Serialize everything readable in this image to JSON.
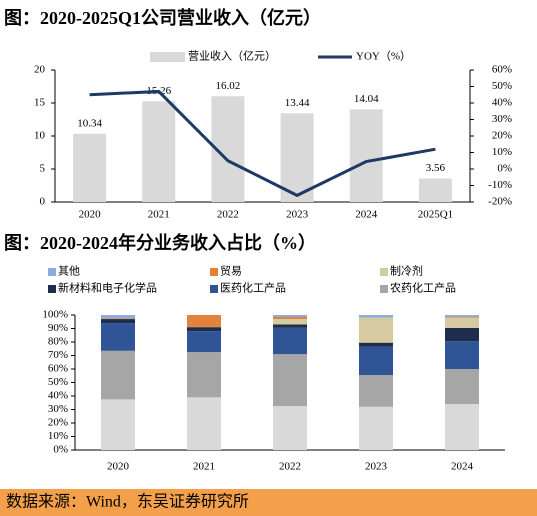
{
  "chart_data": [
    {
      "type": "combo",
      "title": "图：2020-2025Q1公司营业收入（亿元）",
      "categories": [
        "2020",
        "2021",
        "2022",
        "2023",
        "2024",
        "2025Q1"
      ],
      "series": [
        {
          "name": "营业收入（亿元）",
          "color": "#d9d9d9",
          "values": [
            10.34,
            15.26,
            16.02,
            13.44,
            14.04,
            3.56
          ]
        },
        {
          "name": "YOY（%）",
          "color": "#1f3864",
          "axis": "y2",
          "values": [
            45,
            47,
            5,
            -16,
            4.5,
            12
          ]
        }
      ],
      "ylim": [
        0,
        20
      ],
      "yticks": [
        0,
        5,
        10,
        15,
        20
      ],
      "y2lim": [
        -20,
        60
      ],
      "y2ticks": [
        {
          "value": -20,
          "label": "-20%"
        },
        {
          "value": -10,
          "label": "-10%"
        },
        {
          "value": 0,
          "label": "0%"
        },
        {
          "value": 10,
          "label": "10%"
        },
        {
          "value": 20,
          "label": "20%"
        },
        {
          "value": 30,
          "label": "30%"
        },
        {
          "value": 40,
          "label": "40%"
        },
        {
          "value": 50,
          "label": "50%"
        },
        {
          "value": 60,
          "label": "60%"
        }
      ]
    },
    {
      "type": "stacked",
      "title": "图：2020-2024年分业务收入占比（%）",
      "categories": [
        "2020",
        "2021",
        "2022",
        "2023",
        "2024"
      ],
      "series": [
        {
          "color": "#d9d9d9",
          "values": [
            37.5,
            39,
            32.5,
            32,
            34
          ]
        },
        {
          "name": "农药化工产品",
          "color": "#a6a6a6",
          "values": [
            36,
            33.5,
            38.5,
            23.5,
            26
          ]
        },
        {
          "name": "医药化工产品",
          "color": "#2f5597",
          "values": [
            20.5,
            15.5,
            19.5,
            21,
            20.5
          ]
        },
        {
          "name": "新材料和电子化学品",
          "color": "#1f2d4d",
          "values": [
            3,
            3,
            2.5,
            3,
            10
          ]
        },
        {
          "name": "制冷剂",
          "color": "#d6cba0",
          "values": [
            0,
            0,
            4,
            18.5,
            7.5
          ]
        },
        {
          "name": "贸易",
          "color": "#e3823a",
          "values": [
            0.5,
            9,
            1.5,
            0,
            0.5
          ]
        },
        {
          "name": "其他",
          "color": "#8faadc",
          "values": [
            2.5,
            0,
            1.5,
            2,
            1.5
          ]
        }
      ],
      "ylim": [
        0,
        100
      ],
      "yticks": [
        {
          "value": 0,
          "label": "0%"
        },
        {
          "value": 10,
          "label": "10%"
        },
        {
          "value": 20,
          "label": "20%"
        },
        {
          "value": 30,
          "label": "30%"
        },
        {
          "value": 40,
          "label": "40%"
        },
        {
          "value": 50,
          "label": "50%"
        },
        {
          "value": 60,
          "label": "60%"
        },
        {
          "value": 70,
          "label": "70%"
        },
        {
          "value": 80,
          "label": "80%"
        },
        {
          "value": 90,
          "label": "90%"
        },
        {
          "value": 100,
          "label": "100%"
        }
      ]
    }
  ],
  "source": "数据来源：Wind，东吴证券研究所"
}
